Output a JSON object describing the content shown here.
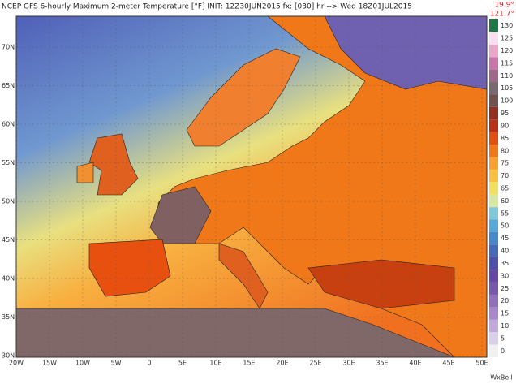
{
  "title": "NCEP GFS 6-hourly Maximum 2-meter Temperature [°F] INIT: 12Z30JUN2015 fx: [030] hr --> Wed 18Z01JUL2015",
  "extremes": [
    "19.9°",
    "121.7°"
  ],
  "lat_labels": [
    "70N",
    "65N",
    "60N",
    "55N",
    "50N",
    "45N",
    "40N",
    "35N",
    "30N"
  ],
  "lon_labels": [
    "20W",
    "15W",
    "10W",
    "5W",
    "0",
    "5E",
    "10E",
    "15E",
    "20E",
    "25E",
    "30E",
    "35E",
    "40E",
    "45E",
    "50E"
  ],
  "colorbar": {
    "ticks": [
      0,
      5,
      10,
      15,
      20,
      25,
      30,
      35,
      40,
      45,
      50,
      55,
      60,
      65,
      70,
      75,
      80,
      85,
      90,
      95,
      100,
      105,
      110,
      115,
      120,
      125,
      130
    ],
    "colors": [
      "#f0f0f0",
      "#d8d0e8",
      "#c0a8d8",
      "#a888c8",
      "#9070b8",
      "#7858a8",
      "#6848a0",
      "#5050a8",
      "#4868b8",
      "#4888c8",
      "#58a8d8",
      "#80c8d8",
      "#d8e8a0",
      "#f0e060",
      "#f8c040",
      "#f8a030",
      "#f07818",
      "#e05010",
      "#b83018",
      "#903020",
      "#705050",
      "#786870",
      "#a06888",
      "#c878a8",
      "#e8a8c8",
      "#f8e0f0",
      "#207848"
    ]
  },
  "credit": "WxBell"
}
